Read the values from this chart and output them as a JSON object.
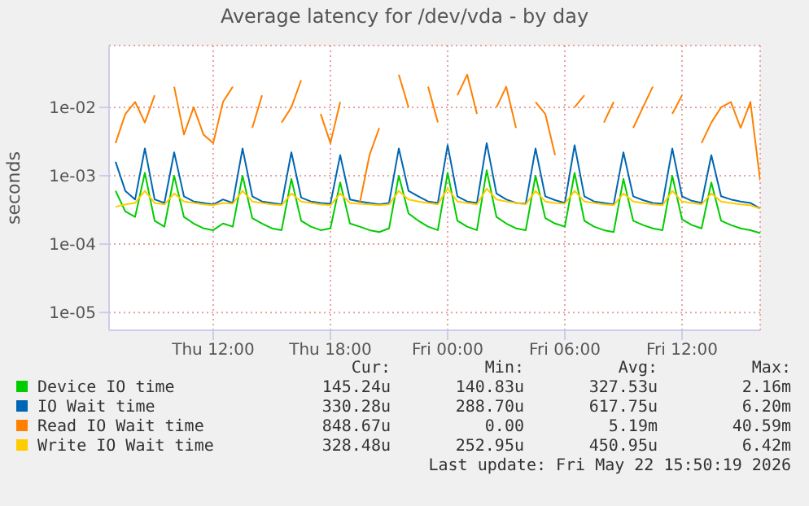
{
  "chart_data": {
    "type": "line",
    "title": "Average latency for /dev/vda - by day",
    "ylabel": "seconds",
    "log": "y",
    "grid": true,
    "marker": "none",
    "legend": "bottom",
    "x": [
      "2026-05-21T07:00",
      "2026-05-21T07:30",
      "2026-05-21T08:00",
      "2026-05-21T08:30",
      "2026-05-21T09:00",
      "2026-05-21T09:30",
      "2026-05-21T10:00",
      "2026-05-21T10:30",
      "2026-05-21T11:00",
      "2026-05-21T11:30",
      "2026-05-21T12:00",
      "2026-05-21T12:30",
      "2026-05-21T13:00",
      "2026-05-21T13:30",
      "2026-05-21T14:00",
      "2026-05-21T14:30",
      "2026-05-21T15:00",
      "2026-05-21T15:30",
      "2026-05-21T16:00",
      "2026-05-21T16:30",
      "2026-05-21T17:00",
      "2026-05-21T17:30",
      "2026-05-21T18:00",
      "2026-05-21T18:30",
      "2026-05-21T19:00",
      "2026-05-21T19:30",
      "2026-05-21T20:00",
      "2026-05-21T20:30",
      "2026-05-21T21:00",
      "2026-05-21T21:30",
      "2026-05-21T22:00",
      "2026-05-21T22:30",
      "2026-05-21T23:00",
      "2026-05-21T23:30",
      "2026-05-22T00:00",
      "2026-05-22T00:30",
      "2026-05-22T01:00",
      "2026-05-22T01:30",
      "2026-05-22T02:00",
      "2026-05-22T02:30",
      "2026-05-22T03:00",
      "2026-05-22T03:30",
      "2026-05-22T04:00",
      "2026-05-22T04:30",
      "2026-05-22T05:00",
      "2026-05-22T05:30",
      "2026-05-22T06:00",
      "2026-05-22T06:30",
      "2026-05-22T07:00",
      "2026-05-22T07:30",
      "2026-05-22T08:00",
      "2026-05-22T08:30",
      "2026-05-22T09:00",
      "2026-05-22T09:30",
      "2026-05-22T10:00",
      "2026-05-22T10:30",
      "2026-05-22T11:00",
      "2026-05-22T11:30",
      "2026-05-22T12:00",
      "2026-05-22T12:30",
      "2026-05-22T13:00",
      "2026-05-22T13:30",
      "2026-05-22T14:00",
      "2026-05-22T14:30",
      "2026-05-22T15:00",
      "2026-05-22T15:30",
      "2026-05-22T16:00"
    ],
    "xlim": [
      "2026-05-21T06:40",
      "2026-05-22T16:00"
    ],
    "xticks": [
      {
        "value": "2026-05-21T12:00",
        "label": "Thu 12:00"
      },
      {
        "value": "2026-05-21T18:00",
        "label": "Thu 18:00"
      },
      {
        "value": "2026-05-22T00:00",
        "label": "Fri 00:00"
      },
      {
        "value": "2026-05-22T06:00",
        "label": "Fri 06:00"
      },
      {
        "value": "2026-05-22T12:00",
        "label": "Fri 12:00"
      }
    ],
    "ylim": [
      5.5e-06,
      0.08
    ],
    "yticks": [
      {
        "value": 1e-05,
        "label": "1e-05"
      },
      {
        "value": 0.0001,
        "label": "1e-04"
      },
      {
        "value": 0.001,
        "label": "1e-03"
      },
      {
        "value": 0.01,
        "label": "1e-02"
      }
    ],
    "series": [
      {
        "name": "Device IO time",
        "color": "#00cc00",
        "values": [
          0.0006,
          0.0003,
          0.00025,
          0.0011,
          0.00022,
          0.00018,
          0.001,
          0.00025,
          0.0002,
          0.00017,
          0.00016,
          0.0002,
          0.00018,
          0.001,
          0.00024,
          0.0002,
          0.00017,
          0.00016,
          0.0009,
          0.00022,
          0.00018,
          0.00016,
          0.00017,
          0.0008,
          0.0002,
          0.00018,
          0.00016,
          0.00015,
          0.00017,
          0.001,
          0.00028,
          0.00022,
          0.00018,
          0.00016,
          0.0011,
          0.00022,
          0.00018,
          0.00016,
          0.0012,
          0.00025,
          0.0002,
          0.00017,
          0.00016,
          0.001,
          0.00024,
          0.0002,
          0.00018,
          0.0011,
          0.00022,
          0.00018,
          0.00016,
          0.00015,
          0.0009,
          0.00022,
          0.00019,
          0.00017,
          0.00016,
          0.001,
          0.00023,
          0.00019,
          0.00017,
          0.0008,
          0.00022,
          0.00019,
          0.00017,
          0.00016,
          0.000145
        ]
      },
      {
        "name": "IO Wait time",
        "color": "#0066b3",
        "values": [
          0.0016,
          0.0006,
          0.00045,
          0.0025,
          0.00045,
          0.0004,
          0.0022,
          0.0005,
          0.00042,
          0.0004,
          0.00038,
          0.00045,
          0.0004,
          0.0025,
          0.0005,
          0.00042,
          0.0004,
          0.00038,
          0.0022,
          0.00048,
          0.00042,
          0.0004,
          0.00039,
          0.002,
          0.00045,
          0.00042,
          0.0004,
          0.00038,
          0.0004,
          0.0025,
          0.0006,
          0.0005,
          0.00042,
          0.0004,
          0.0028,
          0.0005,
          0.00042,
          0.0004,
          0.003,
          0.00055,
          0.00045,
          0.0004,
          0.00039,
          0.0025,
          0.0005,
          0.00044,
          0.0004,
          0.0028,
          0.0005,
          0.00042,
          0.0004,
          0.00038,
          0.0022,
          0.0005,
          0.00044,
          0.0004,
          0.00039,
          0.0025,
          0.0005,
          0.00043,
          0.0004,
          0.002,
          0.0005,
          0.00045,
          0.00042,
          0.0004,
          0.00033
        ]
      },
      {
        "name": "Read IO Wait time",
        "color": "#ff8000",
        "values": [
          0.003,
          0.008,
          0.012,
          0.006,
          0.015,
          null,
          0.02,
          0.004,
          0.01,
          0.004,
          0.003,
          0.012,
          0.02,
          null,
          0.005,
          0.015,
          null,
          0.006,
          0.01,
          0.025,
          null,
          0.008,
          0.003,
          0.012,
          null,
          0.0004,
          0.002,
          0.005,
          null,
          0.03,
          0.01,
          null,
          0.02,
          0.006,
          null,
          0.015,
          0.03,
          0.008,
          null,
          0.01,
          0.02,
          0.005,
          null,
          0.012,
          0.008,
          0.002,
          null,
          0.01,
          0.015,
          null,
          0.006,
          0.012,
          null,
          0.005,
          0.01,
          0.02,
          null,
          0.008,
          0.015,
          null,
          0.003,
          0.006,
          0.01,
          0.012,
          0.005,
          0.012,
          0.00085
        ]
      },
      {
        "name": "Write IO Wait time",
        "color": "#ffcc00",
        "values": [
          0.00035,
          0.00038,
          0.0004,
          0.0006,
          0.0004,
          0.00038,
          0.00055,
          0.00042,
          0.0004,
          0.00038,
          0.00037,
          0.0004,
          0.00039,
          0.0006,
          0.00042,
          0.0004,
          0.00038,
          0.00037,
          0.00055,
          0.00042,
          0.0004,
          0.00038,
          0.00037,
          0.00055,
          0.0004,
          0.00039,
          0.00038,
          0.00037,
          0.00038,
          0.0006,
          0.00045,
          0.00042,
          0.0004,
          0.00038,
          0.00065,
          0.00042,
          0.0004,
          0.00038,
          0.00065,
          0.00045,
          0.00042,
          0.0004,
          0.00038,
          0.0006,
          0.00042,
          0.0004,
          0.00039,
          0.0006,
          0.00042,
          0.0004,
          0.00038,
          0.00037,
          0.00055,
          0.00042,
          0.0004,
          0.00038,
          0.00037,
          0.0006,
          0.00042,
          0.0004,
          0.00038,
          0.00055,
          0.00042,
          0.0004,
          0.00038,
          0.00037,
          0.00033
        ]
      }
    ],
    "annotations": [
      "Cur:",
      "Min:",
      "Avg:",
      "Max:",
      "145.24u",
      "140.83u",
      "327.53u",
      "2.16m",
      "330.28u",
      "288.70u",
      "617.75u",
      "6.20m",
      "848.67u",
      "0.00",
      "5.19m",
      "40.59m",
      "328.48u",
      "252.95u",
      "450.95u",
      "6.42m",
      "Last update: Fri May 22 15:50:19 2026"
    ]
  }
}
